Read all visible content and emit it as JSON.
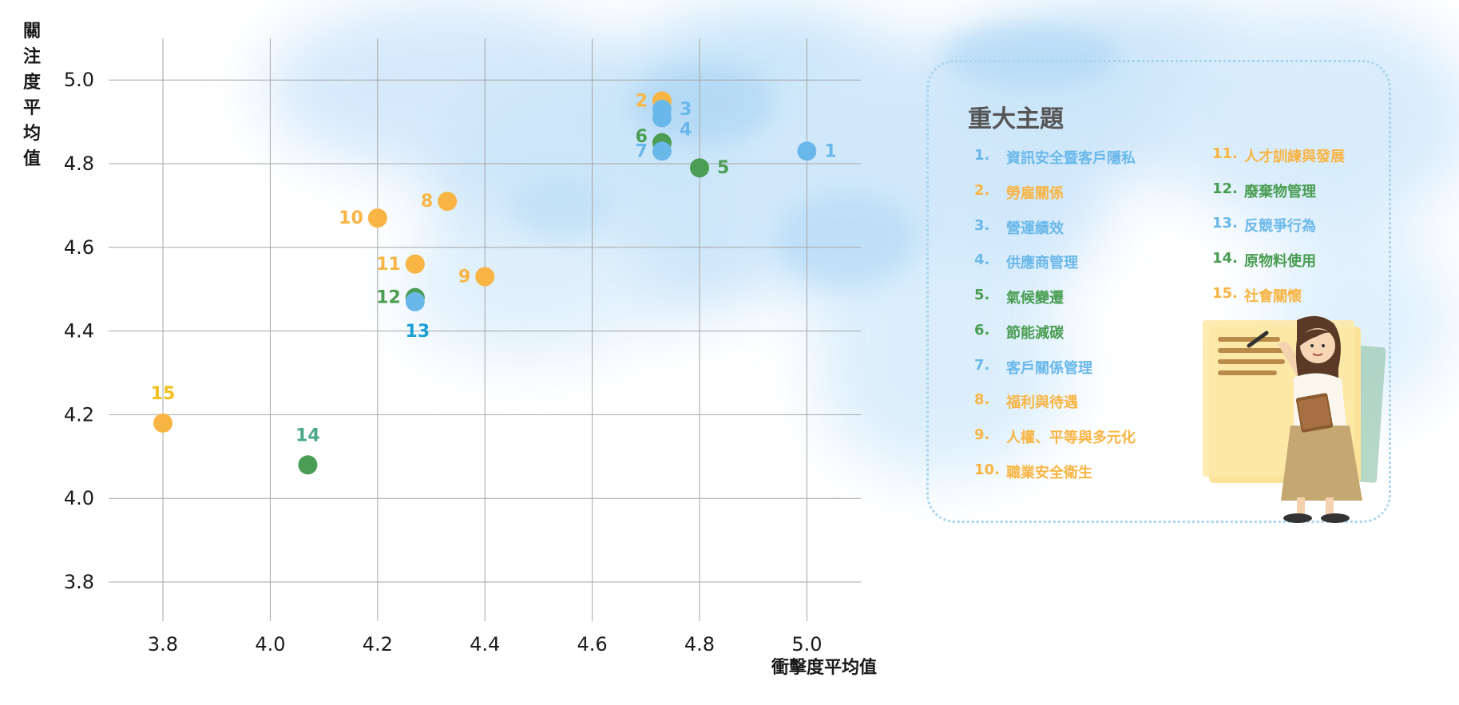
{
  "chart_data": {
    "type": "scatter",
    "xlabel": "衝擊度平均值",
    "ylabel": "關注度平均值",
    "xlim": [
      3.7,
      5.1
    ],
    "ylim": [
      3.7,
      5.1
    ],
    "x_ticks": [
      "3.8",
      "4.0",
      "4.2",
      "4.4",
      "4.6",
      "4.8",
      "5.0"
    ],
    "y_ticks": [
      "3.8",
      "4.0",
      "4.2",
      "4.4",
      "4.6",
      "4.8",
      "5.0"
    ],
    "grid": true,
    "points": [
      {
        "label": "1",
        "x": 5.0,
        "y": 4.83,
        "color": "#6ab8ea",
        "label_color": "#6ab8ea",
        "label_side": "right"
      },
      {
        "label": "2",
        "x": 4.73,
        "y": 4.95,
        "color": "#f9b544",
        "label_color": "#f9b544",
        "label_side": "left"
      },
      {
        "label": "3",
        "x": 4.73,
        "y": 4.93,
        "color": "#6ab8ea",
        "label_color": "#6ab8ea",
        "label_side": "right"
      },
      {
        "label": "4",
        "x": 4.73,
        "y": 4.91,
        "color": "#6ab8ea",
        "label_color": "#6ab8ea",
        "label_side": "right-low"
      },
      {
        "label": "5",
        "x": 4.8,
        "y": 4.79,
        "color": "#4a9d52",
        "label_color": "#4a9d52",
        "label_side": "right"
      },
      {
        "label": "6",
        "x": 4.73,
        "y": 4.85,
        "color": "#4a9d52",
        "label_color": "#4a9d52",
        "label_side": "left-high"
      },
      {
        "label": "7",
        "x": 4.73,
        "y": 4.83,
        "color": "#6ab8ea",
        "label_color": "#6ab8ea",
        "label_side": "left"
      },
      {
        "label": "8",
        "x": 4.33,
        "y": 4.71,
        "color": "#f9b544",
        "label_color": "#f9b544",
        "label_side": "left"
      },
      {
        "label": "9",
        "x": 4.4,
        "y": 4.53,
        "color": "#f9b544",
        "label_color": "#f9b544",
        "label_side": "left"
      },
      {
        "label": "10",
        "x": 4.2,
        "y": 4.67,
        "color": "#f9b544",
        "label_color": "#f9b544",
        "label_side": "left"
      },
      {
        "label": "11",
        "x": 4.27,
        "y": 4.56,
        "color": "#f9b544",
        "label_color": "#f9b544",
        "label_side": "left"
      },
      {
        "label": "12",
        "x": 4.27,
        "y": 4.48,
        "color": "#4a9d52",
        "label_color": "#4a9d52",
        "label_side": "left"
      },
      {
        "label": "13",
        "x": 4.27,
        "y": 4.47,
        "color": "#6ab8ea",
        "label_color": "#1a9fd6",
        "label_side": "below"
      },
      {
        "label": "14",
        "x": 4.07,
        "y": 4.08,
        "color": "#4a9d52",
        "label_color": "#4aa88a",
        "label_side": "above"
      },
      {
        "label": "15",
        "x": 3.8,
        "y": 4.18,
        "color": "#f9b544",
        "label_color": "#f0c020",
        "label_side": "above"
      }
    ]
  },
  "legend": {
    "title": "重大主題",
    "items": [
      {
        "num": "1.",
        "text": "資訊安全暨客戶隱私",
        "color": "#6ab8ea"
      },
      {
        "num": "2.",
        "text": "勞雇關係",
        "color": "#f9b544"
      },
      {
        "num": "3.",
        "text": "營運績效",
        "color": "#6ab8ea"
      },
      {
        "num": "4.",
        "text": "供應商管理",
        "color": "#6ab8ea"
      },
      {
        "num": "5.",
        "text": "氣候變遷",
        "color": "#4a9d52"
      },
      {
        "num": "6.",
        "text": "節能減碳",
        "color": "#4a9d52"
      },
      {
        "num": "7.",
        "text": "客戶關係管理",
        "color": "#6ab8ea"
      },
      {
        "num": "8.",
        "text": "福利與待遇",
        "color": "#f9b544"
      },
      {
        "num": "9.",
        "text": "人權、平等與多元化",
        "color": "#f9b544"
      },
      {
        "num": "10.",
        "text": "職業安全衛生",
        "color": "#f9b544"
      },
      {
        "num": "11.",
        "text": "人才訓練與發展",
        "color": "#f9b544"
      },
      {
        "num": "12.",
        "text": "廢棄物管理",
        "color": "#4a9d52"
      },
      {
        "num": "13.",
        "text": "反競爭行為",
        "color": "#6ab8ea"
      },
      {
        "num": "14.",
        "text": "原物料使用",
        "color": "#4a9d52"
      },
      {
        "num": "15.",
        "text": "社會關懷",
        "color": "#f9b544"
      }
    ]
  },
  "colors": {
    "grid": "#a6a6a6",
    "watercolor": "#bfe0f8"
  },
  "illustration": "woman-teacher-with-notepad"
}
